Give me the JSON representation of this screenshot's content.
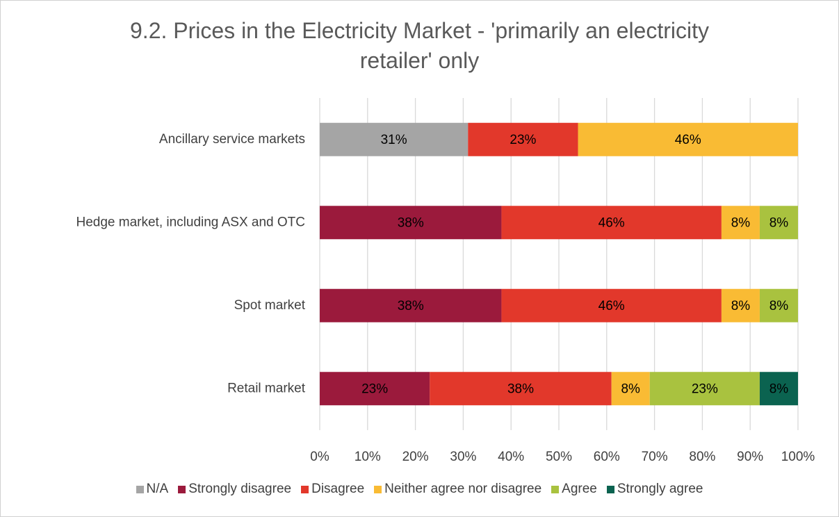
{
  "chart_data": {
    "type": "stacked-bar-horizontal",
    "title": "9.2. Prices in the Electricity Market - 'primarily an electricity retailer' only",
    "categories": [
      "Ancillary service markets",
      "Hedge market, including ASX and OTC",
      "Spot market",
      "Retail market"
    ],
    "series": [
      {
        "name": "N/A",
        "color": "#a5a5a5",
        "values": [
          31,
          null,
          null,
          null
        ],
        "value_labels": [
          "31%",
          null,
          null,
          null
        ]
      },
      {
        "name": "Strongly disagree",
        "color": "#9b1a3c",
        "values": [
          null,
          38,
          38,
          23
        ],
        "value_labels": [
          null,
          "38%",
          "38%",
          "23%"
        ]
      },
      {
        "name": "Disagree",
        "color": "#e2382b",
        "values": [
          23,
          46,
          46,
          38
        ],
        "value_labels": [
          "23%",
          "46%",
          "46%",
          "38%"
        ]
      },
      {
        "name": "Neither agree nor disagree",
        "color": "#f9bb34",
        "values": [
          46,
          8,
          8,
          8
        ],
        "value_labels": [
          "46%",
          "8%",
          "8%",
          "8%"
        ]
      },
      {
        "name": "Agree",
        "color": "#a9c23f",
        "values": [
          null,
          8,
          8,
          23
        ],
        "value_labels": [
          null,
          "8%",
          "8%",
          "23%"
        ]
      },
      {
        "name": "Strongly agree",
        "color": "#0b6350",
        "values": [
          null,
          null,
          null,
          8
        ],
        "value_labels": [
          null,
          null,
          null,
          "8%"
        ]
      }
    ],
    "xlim": [
      0,
      100
    ],
    "xticks": [
      {
        "value": 0,
        "label": "0%"
      },
      {
        "value": 10,
        "label": "10%"
      },
      {
        "value": 20,
        "label": "20%"
      },
      {
        "value": 30,
        "label": "30%"
      },
      {
        "value": 40,
        "label": "40%"
      },
      {
        "value": 50,
        "label": "50%"
      },
      {
        "value": 60,
        "label": "60%"
      },
      {
        "value": 70,
        "label": "70%"
      },
      {
        "value": 80,
        "label": "80%"
      },
      {
        "value": 90,
        "label": "90%"
      },
      {
        "value": 100,
        "label": "100%"
      }
    ],
    "grid": true,
    "legend": "bottom"
  }
}
